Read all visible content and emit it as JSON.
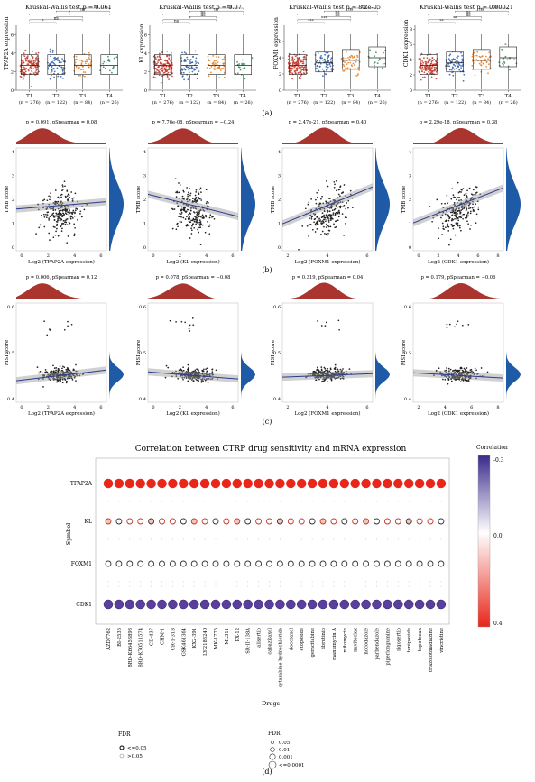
{
  "panel_a": {
    "label": "(a)",
    "plots": [
      {
        "test": "Kruskal-Wallis test p = 0.061",
        "ylabel": "TFAP2A expression",
        "yticks": [
          "0",
          "2",
          "4",
          "6"
        ],
        "ymax": 7,
        "color_idx": 0,
        "sig": [
          "*",
          "ns",
          "*",
          "*",
          "ns",
          "ns"
        ]
      },
      {
        "test": "Kruskal-Wallis test p = 0.07",
        "ylabel": "KL expression",
        "yticks": [
          "0",
          "2",
          "4",
          "6"
        ],
        "ymax": 7,
        "sig": [
          "ns",
          "*",
          "ns",
          "ns",
          "ns",
          "ns"
        ]
      },
      {
        "test": "Kruskal-Wallis test p = 8.2e-05",
        "ylabel": "FOXM1 expression",
        "yticks": [
          "0",
          "2",
          "4",
          "6"
        ],
        "ymax": 8,
        "sig": [
          "***",
          "***",
          "ns",
          "ns",
          "ns",
          "ns"
        ]
      },
      {
        "test": "Kruskal-Wallis test p = 0.00021",
        "ylabel": "CDK1 expression",
        "yticks": [
          "0",
          "2",
          "4",
          "6",
          "8"
        ],
        "ymax": 8.5,
        "sig": [
          "**",
          "**",
          "ns",
          "ns",
          "ns",
          "ns"
        ]
      }
    ],
    "groups": [
      {
        "name": "T1",
        "n": "(n = 276)"
      },
      {
        "name": "T2",
        "n": "(n = 122)"
      },
      {
        "name": "T3",
        "n": "(n = 84)"
      },
      {
        "name": "T4",
        "n": "(n = 26)"
      }
    ],
    "group_colors": [
      "#c0392b",
      "#2f5fa8",
      "#e67e22",
      "#2e8b57"
    ]
  },
  "panel_b": {
    "label": "(b)",
    "plots": [
      {
        "stat": "p = 0.091, pSpearman = 0.08",
        "ylabel": "TMB score",
        "xlabel": "Log2 (TFAP2A expression)",
        "xticks": [
          "0",
          "2",
          "4",
          "6"
        ],
        "yticks": [
          "0",
          "1",
          "2",
          "3",
          "4"
        ],
        "slope": 0.08
      },
      {
        "stat": "p = 7.76e-08, pSpearman = −0.24",
        "ylabel": "TMB score",
        "xlabel": "Log2 (KL expression)",
        "xticks": [
          "0",
          "2",
          "4",
          "6"
        ],
        "yticks": [
          "0",
          "1",
          "2",
          "3",
          "4"
        ],
        "slope": -0.24
      },
      {
        "stat": "p = 2.47e-21, pSpearman = 0.40",
        "ylabel": "TMB score",
        "xlabel": "Log2 (FOXM1 expression)",
        "xticks": [
          "2",
          "4",
          "6"
        ],
        "yticks": [
          "0",
          "1",
          "2",
          "3",
          "4"
        ],
        "slope": 0.4
      },
      {
        "stat": "p = 2.29e-18, pSpearman = 0.38",
        "ylabel": "TMB score",
        "xlabel": "Log2 (CDK1 expression)",
        "xticks": [
          "0",
          "2",
          "4",
          "6",
          "8"
        ],
        "yticks": [
          "0",
          "1",
          "2",
          "3",
          "4"
        ],
        "slope": 0.38
      }
    ]
  },
  "panel_c": {
    "label": "(c)",
    "plots": [
      {
        "stat": "p = 0.006, pSpearman = 0.12",
        "ylabel": "MSI score",
        "xlabel": "Log2 (TFAP2A expression)",
        "xticks": [
          "0",
          "2",
          "4",
          "6"
        ],
        "yticks": [
          "0.4",
          "0.5",
          "0.6"
        ],
        "slope": 0.12
      },
      {
        "stat": "p = 0.078, pSpearman = −0.08",
        "ylabel": "MSI score",
        "xlabel": "Log2 (KL expression)",
        "xticks": [
          "0",
          "2",
          "4",
          "6"
        ],
        "yticks": [
          "0.4",
          "0.5",
          "0.6"
        ],
        "slope": -0.08
      },
      {
        "stat": "p = 0.319, pSpearman = 0.04",
        "ylabel": "MSI score",
        "xlabel": "Log2 (FOXM1 expression)",
        "xticks": [
          "2",
          "4",
          "6"
        ],
        "yticks": [
          "0.4",
          "0.5",
          "0.6"
        ],
        "slope": 0.04
      },
      {
        "stat": "p = 0.179, pSpearman = −0.06",
        "ylabel": "MSI score",
        "xlabel": "Log2 (CDK1 expression)",
        "xticks": [
          "2",
          "4",
          "6",
          "8"
        ],
        "yticks": [
          "0.4",
          "0.5",
          "0.6"
        ],
        "slope": -0.06
      }
    ]
  },
  "panel_d": {
    "label": "(d)",
    "title": "Correlation between CTRP drug sensitivity and mRNA expression",
    "ylabel": "Symbol",
    "xlabel": "Drugs",
    "legend_title": "Correlation",
    "legend_ticks": [
      "-0.3",
      "0.0",
      "0.4"
    ],
    "fdr_legend": {
      "title": "FDR",
      "items": [
        "<=0.05",
        ">0.05"
      ]
    },
    "size_legend": {
      "title": "FDR",
      "items": [
        "0.05",
        "0.01",
        "0.001",
        "<=0.0001"
      ]
    }
  },
  "chart_data": {
    "type": "scatter",
    "title": "Correlation between CTRP drug sensitivity and mRNA expression",
    "xlabel": "Drugs",
    "ylabel": "Symbol",
    "genes": [
      "TFAP2A",
      "KL",
      "FOXM1",
      "CDK1"
    ],
    "drugs": [
      "AZD7762",
      "BI-2536",
      "BRD-K66453893",
      "BRD-K70511574",
      "CD-437",
      "CHM-1",
      "CR-1-31B",
      "GSK461364",
      "KX2-391",
      "LY-2183240",
      "MK-1775",
      "ML311",
      "PX-12",
      "SR-II-138A",
      "alisertib",
      "cabazitaxel",
      "cytarabine hydrochloride",
      "docetaxel",
      "etoposide",
      "gemcitabine",
      "ibrutinib",
      "manumycin A",
      "mitomycin",
      "navitoclax",
      "nocodazole",
      "parbendazole",
      "piperlongumine",
      "rigosertib",
      "teniposide",
      "topotecan",
      "triazolothiadiazine",
      "vincristine"
    ],
    "correlation_by_gene": {
      "TFAP2A": 0.4,
      "KL": 0.08,
      "FOXM1": 0.0,
      "CDK1": -0.3
    },
    "colorbar": {
      "min": -0.3,
      "mid": 0.0,
      "max": 0.4,
      "low_color": "#3b2a8c",
      "mid_color": "#ffffff",
      "high_color": "#e8261a"
    }
  }
}
